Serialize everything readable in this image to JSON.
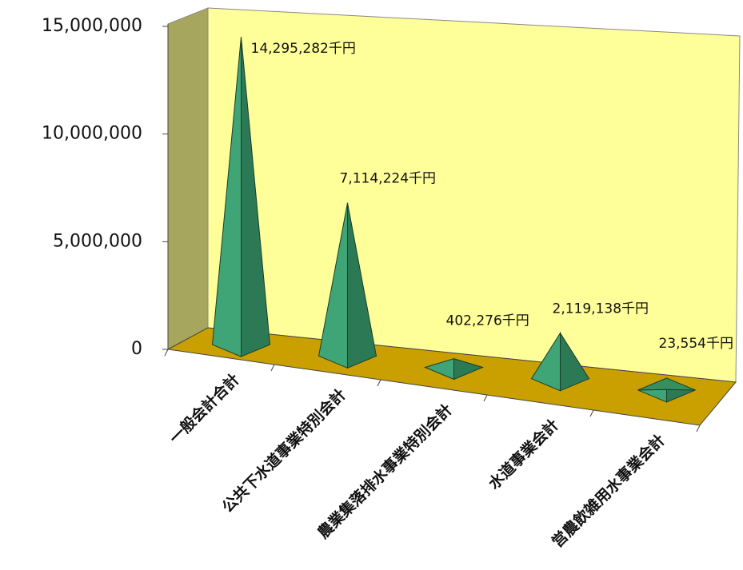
{
  "chart_data": {
    "type": "pyramid3d",
    "categories": [
      "一般会計合計",
      "公共下水道事業特別会計",
      "農業集落排水事業特別会計",
      "水道事業会計",
      "営農飲雑用水事業会計"
    ],
    "values": [
      14295282,
      7114224,
      402276,
      2119138,
      23554
    ],
    "value_labels": [
      "14,295,282千円",
      "7,114,224千円",
      "402,276千円",
      "2,119,138千円",
      "23,554千円"
    ],
    "color": "#3fa476",
    "ylim": [
      0,
      15000000
    ],
    "yticks": [
      0,
      {
        "value": 5000000,
        "label": "5,000,000"
      },
      {
        "value": 10000000,
        "label": "10,000,000"
      },
      {
        "value": 15000000,
        "label": "15,000,000"
      }
    ]
  }
}
